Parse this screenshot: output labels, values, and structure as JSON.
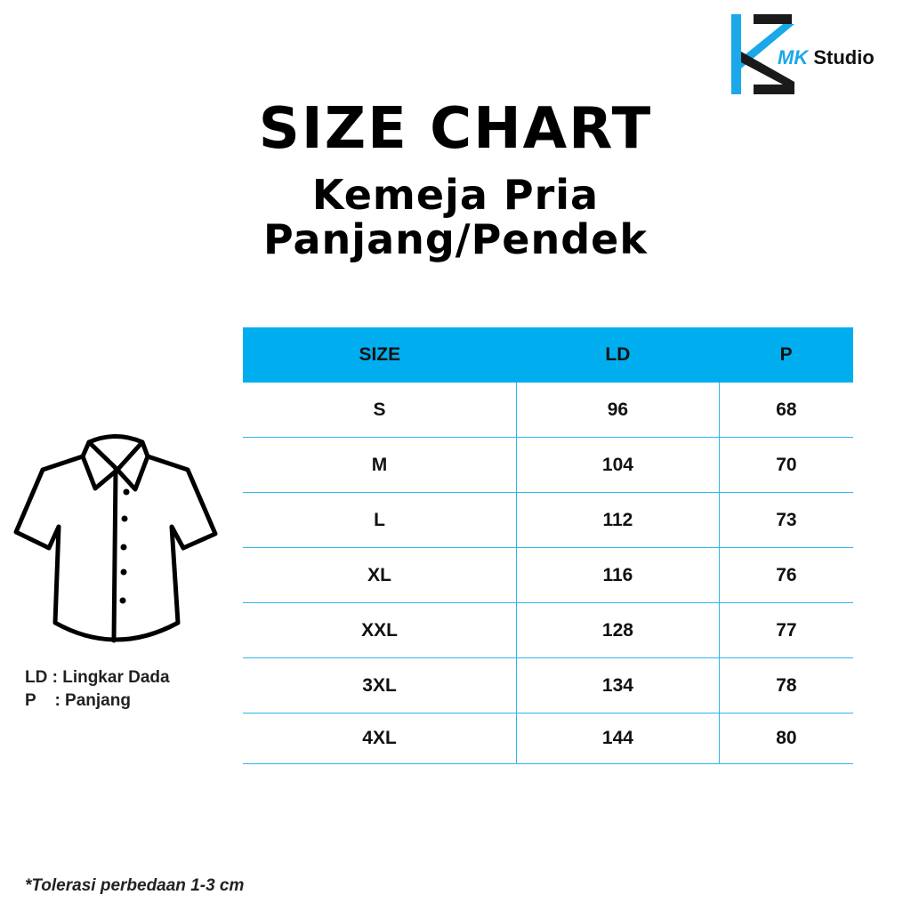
{
  "logo": {
    "mk": "MK",
    "studio": "Studio",
    "colors": {
      "blue": "#1aa8e8",
      "dark": "#1a1a1a"
    }
  },
  "title": "SIZE CHART",
  "subtitle_line1": "Kemeja Pria",
  "subtitle_line2": "Panjang/Pendek",
  "table": {
    "header_color": "#00aeef",
    "headers": [
      "SIZE",
      "LD",
      "P"
    ],
    "rows": [
      [
        "S",
        "96",
        "68"
      ],
      [
        "M",
        "104",
        "70"
      ],
      [
        "L",
        "112",
        "73"
      ],
      [
        "XL",
        "116",
        "76"
      ],
      [
        "XXL",
        "128",
        "77"
      ],
      [
        "3XL",
        "134",
        "78"
      ],
      [
        "4XL",
        "144",
        "80"
      ]
    ]
  },
  "legend": {
    "ld": "LD : Lingkar Dada",
    "p": "P    : Panjang"
  },
  "note": "*Tolerasi perbedaan 1-3 cm",
  "illustration": "shirt-icon"
}
